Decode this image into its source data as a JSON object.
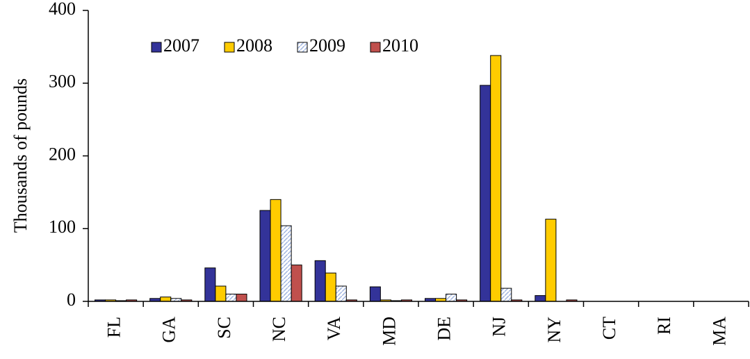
{
  "chart_data": {
    "type": "bar",
    "y_label": "Thousands of pounds",
    "categories": [
      "FL",
      "GA",
      "SC",
      "NC",
      "VA",
      "MD",
      "DE",
      "NJ",
      "NY",
      "CT",
      "RI",
      "MA"
    ],
    "series": [
      {
        "name": "2007",
        "color": "#333399",
        "values": [
          2,
          4,
          46,
          125,
          56,
          20,
          4,
          297,
          8,
          0,
          0,
          0
        ]
      },
      {
        "name": "2008",
        "color": "#ffcc00",
        "values": [
          2,
          6,
          21,
          140,
          39,
          2,
          4,
          338,
          113,
          0,
          0,
          0
        ]
      },
      {
        "name": "2009",
        "color": "#b8c8e8",
        "hatch": true,
        "values": [
          1,
          4,
          10,
          104,
          21,
          1,
          10,
          18,
          0,
          0,
          0,
          0
        ]
      },
      {
        "name": "2010",
        "color": "#c0504d",
        "values": [
          2,
          2,
          10,
          50,
          2,
          2,
          2,
          2,
          2,
          0,
          0,
          0
        ]
      }
    ],
    "ylim": [
      0,
      400
    ],
    "yticks": [
      0,
      100,
      200,
      300,
      400
    ],
    "grid": false
  }
}
